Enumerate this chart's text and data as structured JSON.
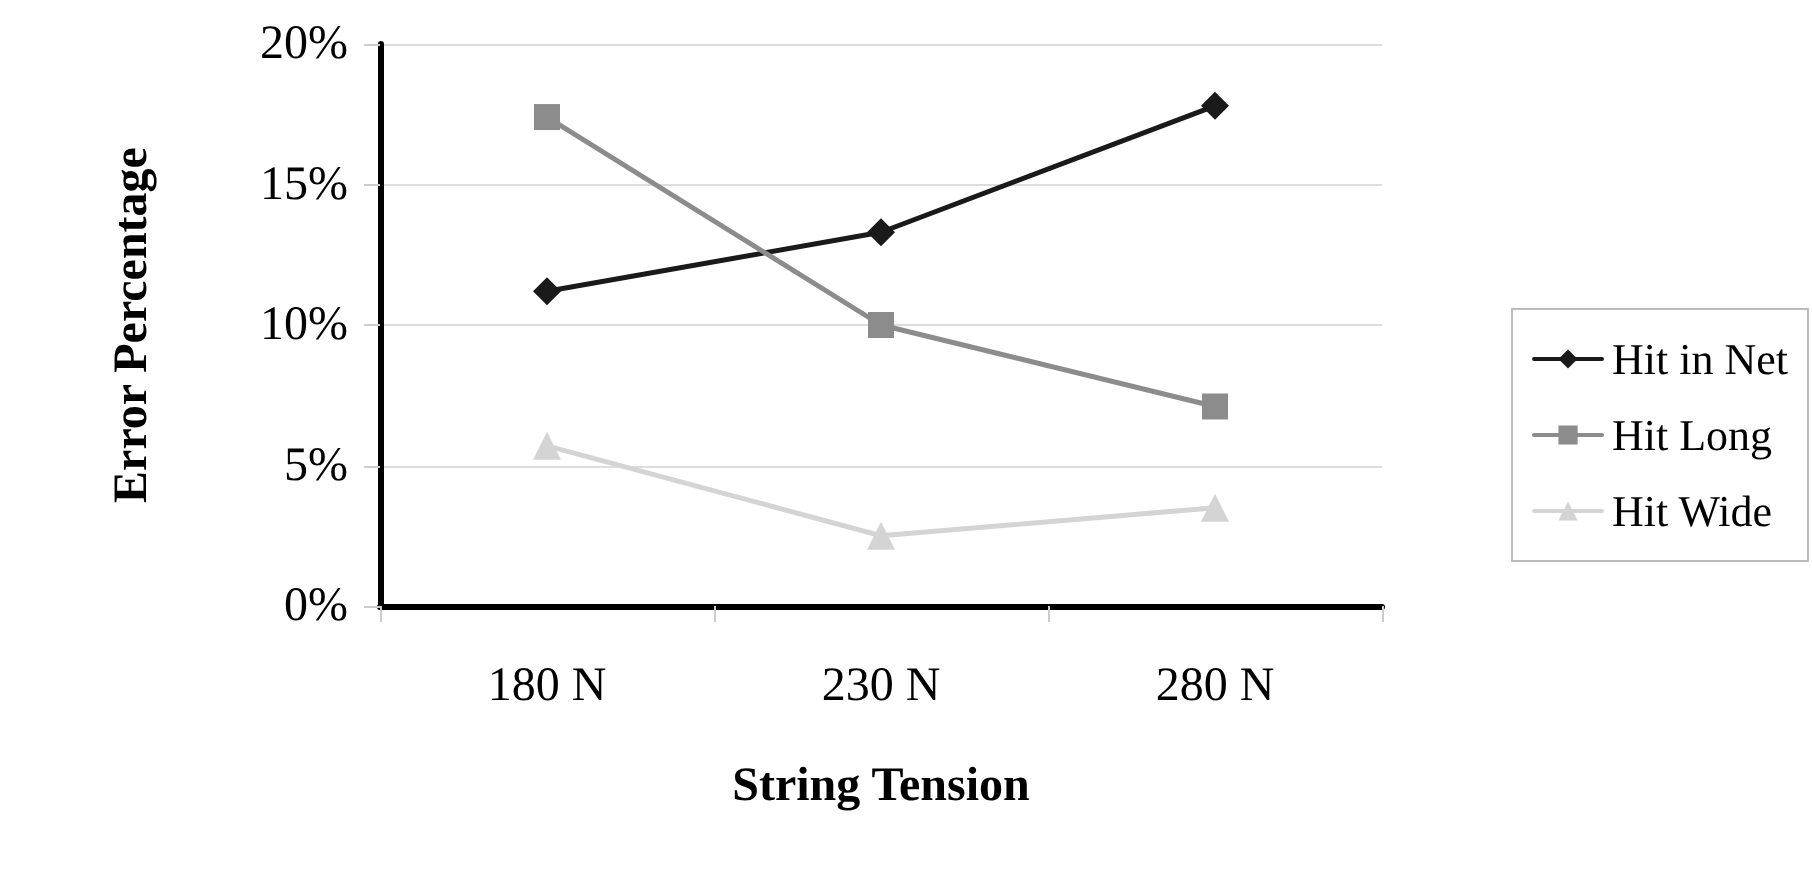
{
  "chart_data": {
    "type": "line",
    "xlabel": "String Tension",
    "ylabel": "Error Percentage",
    "categories": [
      "180 N",
      "230 N",
      "280 N"
    ],
    "series": [
      {
        "name": "Hit in Net",
        "color": "#1a1a1a",
        "values": [
          11.2,
          13.3,
          17.8
        ],
        "marker": "diamond"
      },
      {
        "name": "Hit Long",
        "color": "#8c8c8c",
        "values": [
          17.4,
          10.0,
          7.1
        ],
        "marker": "square"
      },
      {
        "name": "Hit Wide",
        "color": "#d4d4d4",
        "values": [
          5.7,
          2.5,
          3.5
        ],
        "marker": "triangle"
      }
    ],
    "ylim": [
      0,
      20
    ],
    "yticks": [
      {
        "value": 0,
        "label": "0%"
      },
      {
        "value": 5,
        "label": "5%"
      },
      {
        "value": 10,
        "label": "10%"
      },
      {
        "value": 15,
        "label": "15%"
      },
      {
        "value": 20,
        "label": "20%"
      }
    ],
    "grid": "y",
    "legend": "right",
    "line_style": "solid"
  }
}
